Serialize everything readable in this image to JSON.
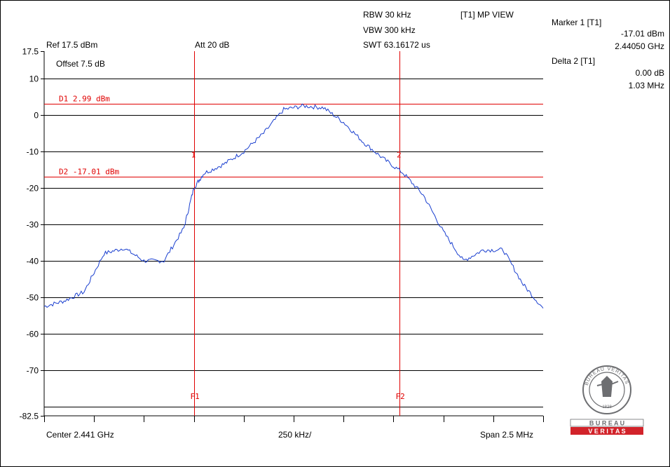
{
  "header": {
    "rbw": "RBW 30 kHz",
    "vbw": "VBW 300 kHz",
    "swt": "SWT 63.16172 us",
    "view": "[T1] MP VIEW",
    "ref": "Ref 17.5 dBm",
    "att": "Att  20 dB",
    "offset": "Offset 7.5 dB"
  },
  "markers": {
    "marker1_title": "Marker 1 [T1]",
    "marker1_level": "-17.01 dBm",
    "marker1_freq": "2.44050 GHz",
    "delta2_title": "Delta 2 [T1]",
    "delta2_level": "0.00 dB",
    "delta2_freq": "1.03 MHz"
  },
  "footer": {
    "center": "Center 2.441 GHz",
    "div": "250 kHz/",
    "span": "Span 2.5 MHz"
  },
  "logo": {
    "text_top": "BUREAU VERITAS",
    "year": "1828",
    "band1": "B U R E A U",
    "band2": "V E R I T A S"
  },
  "colors": {
    "trace": "#1a3fcf",
    "markers": "#e00000",
    "grid": "#000000",
    "logo_red": "#d2232a",
    "logo_gray": "#6d6e71"
  },
  "chart_data": {
    "type": "line",
    "title": "",
    "xlabel": "",
    "ylabel": "",
    "xlim": [
      2.43975,
      2.44225
    ],
    "x_unit": "GHz",
    "ylim": [
      -82.5,
      17.5
    ],
    "y_unit": "dBm",
    "grid": true,
    "ytick_labels": [
      "17.5",
      "10",
      "0",
      "-10",
      "-20",
      "-30",
      "-40",
      "-50",
      "-60",
      "-70",
      "-82.5"
    ],
    "ytick_values": [
      17.5,
      10,
      0,
      -10,
      -20,
      -30,
      -40,
      -50,
      -60,
      -70,
      -82.5
    ],
    "hlines": [
      {
        "label": "D1  2.99  dBm",
        "value": 2.99
      },
      {
        "label": "D2  -17.01  dBm",
        "value": -17.01
      }
    ],
    "vlines": [
      {
        "label": "F1",
        "value": 2.4405
      },
      {
        "label": "F2",
        "value": 2.44153
      }
    ],
    "marker_labels": [
      {
        "label": "1",
        "x": 2.4405,
        "y": -17.01
      },
      {
        "label": "2",
        "x": 2.44153,
        "y": -17.01
      }
    ],
    "series": [
      {
        "x": [
          2.43975,
          2.43985,
          2.43995,
          2.44005,
          2.44015,
          2.44025,
          2.44035,
          2.44045,
          2.4405,
          2.44055,
          2.44065,
          2.44075,
          2.44085,
          2.44095,
          2.44105,
          2.44115,
          2.44125,
          2.44135,
          2.44145,
          2.44155,
          2.44165,
          2.44175,
          2.44185,
          2.44195,
          2.44205,
          2.44215,
          2.44225
        ],
        "y": [
          -52.5,
          -51,
          -48.5,
          -38,
          -36.5,
          -40,
          -40,
          -31,
          -20,
          -16,
          -13.5,
          -10,
          -5,
          1.5,
          2.5,
          2,
          -2,
          -7.5,
          -12,
          -16,
          -22,
          -32,
          -40,
          -37,
          -37,
          -46.5,
          -53
        ]
      }
    ]
  }
}
